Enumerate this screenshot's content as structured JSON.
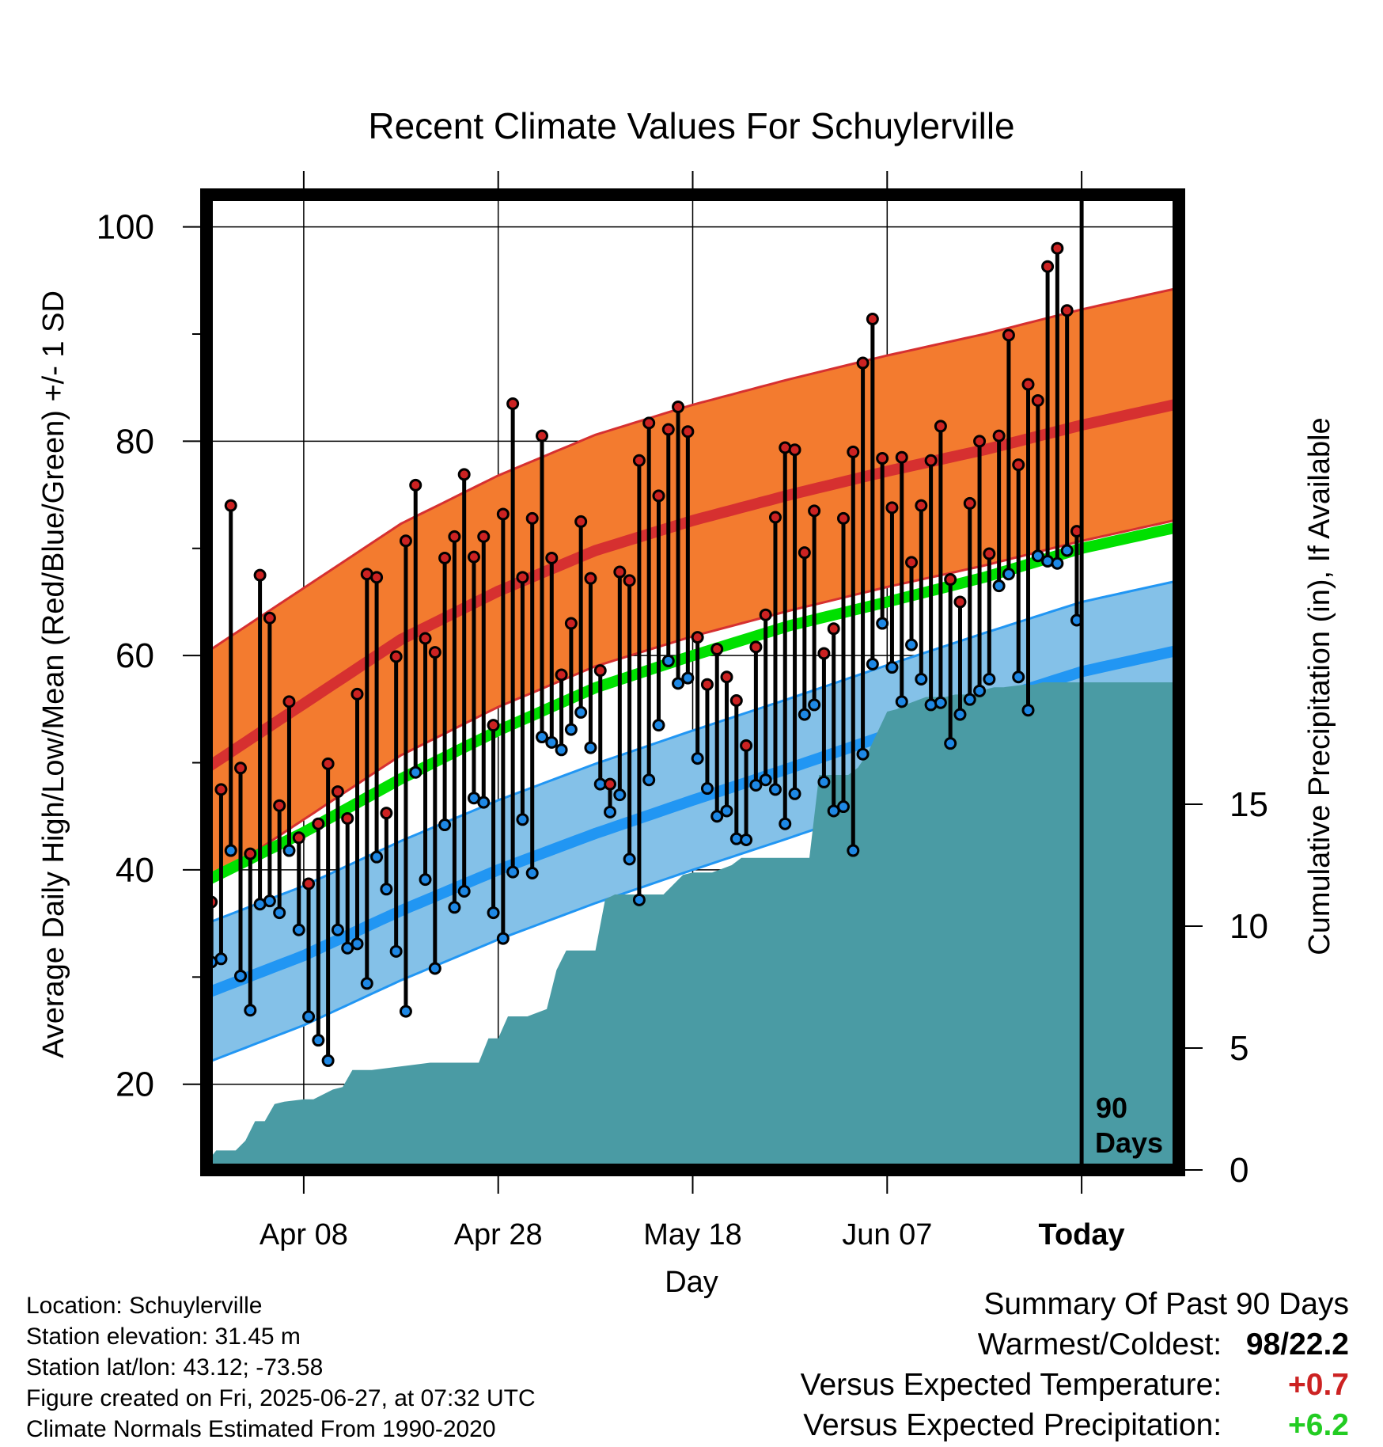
{
  "chart_data": {
    "type": "line",
    "title": "Recent Climate Values For Schuylerville",
    "xlabel": "Day",
    "ylabel": "Average Daily High/Low/Mean (Red/Blue/Green) +/- 1 SD",
    "y2label": "Cumulative Precipitation (in), If Available",
    "x_tick_labels": [
      "Apr 08",
      "Apr 28",
      "May 18",
      "Jun 07",
      "Today"
    ],
    "x_tick_days": [
      10,
      30,
      50,
      70,
      90
    ],
    "x_range_days": [
      0,
      100
    ],
    "y_ticks": [
      20,
      40,
      60,
      80,
      100
    ],
    "ylim": [
      12,
      103
    ],
    "y2_ticks": [
      0,
      5,
      10,
      15
    ],
    "y2lim": [
      0,
      40
    ],
    "grid": true,
    "today_marker": {
      "day": 90,
      "label_line1": "90",
      "label_line2": "Days"
    },
    "normals": {
      "days": [
        0,
        10,
        20,
        30,
        40,
        50,
        60,
        70,
        80,
        90,
        100
      ],
      "high_mean": [
        49.5,
        55.5,
        61.5,
        66.0,
        69.8,
        72.6,
        75.0,
        77.2,
        79.2,
        81.5,
        83.5
      ],
      "high_sd": 10.8,
      "mean": [
        39.0,
        43.5,
        48.5,
        53.0,
        57.0,
        60.0,
        62.8,
        65.0,
        67.3,
        70.0,
        72.0
      ],
      "low_mean": [
        28.5,
        32.0,
        36.2,
        40.0,
        43.4,
        46.5,
        49.5,
        52.6,
        55.6,
        58.5,
        60.5
      ],
      "low_sd": 6.5
    },
    "series": [
      {
        "name": "High",
        "color": "#cc2222",
        "values": [
          37.0,
          47.5,
          74.0,
          49.5,
          41.5,
          67.5,
          63.5,
          46.0,
          55.7,
          43.0,
          38.7,
          44.3,
          49.9,
          47.3,
          44.8,
          56.4,
          67.6,
          67.3,
          45.3,
          59.9,
          70.7,
          75.9,
          61.6,
          60.3,
          69.1,
          71.1,
          76.9,
          69.2,
          71.1,
          53.5,
          73.2,
          83.5,
          67.3,
          72.8,
          80.5,
          69.1,
          58.2,
          63.0,
          72.5,
          67.2,
          58.6,
          48.0,
          67.8,
          67.0,
          78.2,
          81.7,
          74.9,
          81.1,
          83.2,
          80.9,
          61.7,
          57.3,
          60.6,
          58.0,
          55.8,
          51.6,
          60.8,
          63.8,
          72.9,
          79.4,
          79.2,
          69.6,
          73.5,
          60.2,
          62.5,
          72.8,
          79.0,
          87.3,
          91.4,
          78.4,
          73.8,
          78.5,
          68.7,
          74.0,
          78.2,
          81.4,
          67.1,
          65.0,
          74.2,
          80.0,
          69.5,
          80.5,
          89.9,
          77.8,
          85.3,
          83.8,
          96.3,
          98.0,
          92.2,
          71.6
        ]
      },
      {
        "name": "Low",
        "color": "#1e88e5",
        "values": [
          31.4,
          31.7,
          41.8,
          30.1,
          26.9,
          36.8,
          37.1,
          36.0,
          41.8,
          34.4,
          26.3,
          24.1,
          22.2,
          34.4,
          32.7,
          33.1,
          29.4,
          41.2,
          38.2,
          32.4,
          26.8,
          49.1,
          39.1,
          30.8,
          44.2,
          36.5,
          38.0,
          46.7,
          46.3,
          36.0,
          33.6,
          39.8,
          44.7,
          39.7,
          52.4,
          51.9,
          51.2,
          53.1,
          54.7,
          51.4,
          48.0,
          45.4,
          47.0,
          41.0,
          37.2,
          48.4,
          53.5,
          59.5,
          57.4,
          57.9,
          50.4,
          47.6,
          45.0,
          45.5,
          42.9,
          42.8,
          47.9,
          48.4,
          47.5,
          44.3,
          47.1,
          54.5,
          55.4,
          48.2,
          45.5,
          45.9,
          41.8,
          50.8,
          59.2,
          63.0,
          58.9,
          55.7,
          61.0,
          57.8,
          55.4,
          55.6,
          51.8,
          54.5,
          55.9,
          56.7,
          57.8,
          66.5,
          67.6,
          58.0,
          54.9,
          69.3,
          68.8,
          68.6,
          69.8,
          63.3
        ]
      },
      {
        "name": "Cumulative Precipitation",
        "days": [
          0,
          1,
          3,
          4,
          5,
          6,
          7,
          8,
          10,
          11,
          13,
          14,
          15,
          17,
          21,
          23,
          25,
          28,
          29,
          30,
          31,
          33,
          35,
          36,
          37,
          38,
          40,
          41,
          42,
          43,
          47,
          48,
          49,
          50,
          52,
          54,
          55,
          57,
          62,
          63,
          66,
          67,
          68,
          70,
          71,
          72,
          74,
          75,
          76,
          77,
          79,
          80,
          81,
          82,
          84,
          85,
          86,
          100
        ],
        "values": [
          0.3,
          0.8,
          0.8,
          1.2,
          2.0,
          2.0,
          2.7,
          2.8,
          2.9,
          2.9,
          3.3,
          3.4,
          4.1,
          4.1,
          4.3,
          4.4,
          4.4,
          4.4,
          5.4,
          5.4,
          6.3,
          6.3,
          6.6,
          8.2,
          9.0,
          9.0,
          9.0,
          11.1,
          11.3,
          11.3,
          11.3,
          11.7,
          12.1,
          12.2,
          12.2,
          12.5,
          12.8,
          12.8,
          12.8,
          16.2,
          16.2,
          16.5,
          17.1,
          18.8,
          18.9,
          19.1,
          19.4,
          19.4,
          19.4,
          19.5,
          19.5,
          19.7,
          19.8,
          19.8,
          19.9,
          19.9,
          20.0,
          20.0
        ]
      }
    ]
  },
  "info": {
    "location": "Location: Schuylerville",
    "elevation": "Station elevation: 31.45 m",
    "latlon": "Station lat/lon: 43.12; -73.58",
    "created": "Figure created on Fri, 2025-06-27, at 07:32 UTC",
    "normals_note": "Climate Normals Estimated From 1990-2020"
  },
  "summary": {
    "heading": "Summary Of Past 90 Days",
    "warmest_label": "Warmest/Coldest:",
    "warmest_value": "98",
    "slash": "/",
    "coldest_value": "22.2",
    "temp_label": "Versus Expected Temperature:",
    "temp_value": "+0.7",
    "temp_color": "#cc2222",
    "precip_label": "Versus Expected Precipitation:",
    "precip_value": "+6.2",
    "precip_color": "#22cc22"
  },
  "colors": {
    "high_band": "#f37b2f",
    "high_line": "#d63030",
    "mean_line": "#00e000",
    "low_band": "#84c1e8",
    "low_line": "#2196f3",
    "precip": "#4a9ba4",
    "high_point": "#cc2222",
    "low_point": "#1e88e5"
  }
}
